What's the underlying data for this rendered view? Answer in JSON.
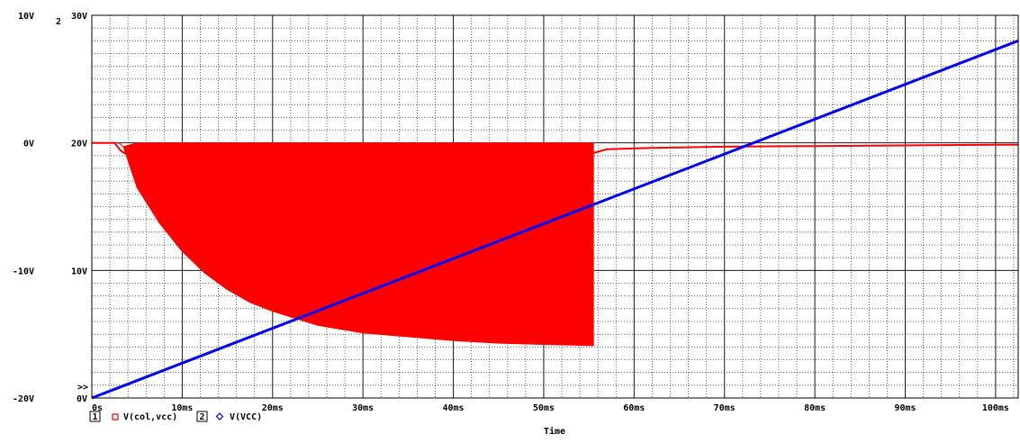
{
  "chart_data": {
    "type": "line",
    "x": {
      "label": "Time",
      "range_ms": [
        0,
        100
      ],
      "ticks_ms": [
        0,
        10,
        20,
        30,
        40,
        50,
        60,
        70,
        80,
        90,
        100
      ],
      "tick_labels": [
        "0s",
        "10ms",
        "20ms",
        "30ms",
        "40ms",
        "50ms",
        "60ms",
        "70ms",
        "80ms",
        "90ms",
        "100ms"
      ]
    },
    "y_axes": [
      {
        "id": "1",
        "range": [
          -20,
          10
        ],
        "ticks": [
          -20,
          -10,
          0,
          10
        ],
        "tick_labels": [
          "-20V",
          "-10V",
          "0V",
          "10V"
        ],
        "side": "outer-left"
      },
      {
        "id": "2",
        "range": [
          0,
          30
        ],
        "ticks": [
          0,
          10,
          20,
          30
        ],
        "tick_labels": [
          "0V",
          "10V",
          "20V",
          "30V"
        ],
        "side": "inner-left"
      }
    ],
    "y_axis_2_marker": "2",
    "selected_axis_marker": ">>",
    "grid": "dotted",
    "series": [
      {
        "name": "V(col,vcc)",
        "axis": "1",
        "color": "#ff0000",
        "legend_index": "1",
        "legend_symbol": "square",
        "kind": "oscillation-envelope",
        "envelope_time_ms": [
          0,
          3,
          3.5,
          5,
          7.5,
          10,
          12.5,
          15,
          17.5,
          20,
          25,
          30,
          35,
          40,
          45,
          50,
          55.5
        ],
        "envelope_upper_V": [
          0,
          0,
          -0.3,
          0,
          0,
          0,
          0,
          0,
          0,
          0,
          0,
          0,
          0,
          0,
          0,
          0,
          0
        ],
        "envelope_lower_V": [
          0,
          0,
          -0.3,
          -3.5,
          -6.3,
          -8.5,
          -10.2,
          -11.5,
          -12.5,
          -13.2,
          -14.3,
          -14.9,
          -15.2,
          -15.5,
          -15.7,
          -15.8,
          -15.9
        ],
        "tail_time_ms": [
          0,
          2.5,
          3.2,
          3.6,
          55.5,
          57,
          62,
          70,
          80,
          90,
          100,
          102.5
        ],
        "tail_V": [
          0,
          0,
          -0.6,
          -0.8,
          -0.8,
          -0.5,
          -0.4,
          -0.3,
          -0.25,
          -0.2,
          -0.15,
          -0.15
        ]
      },
      {
        "name": "V(VCC)",
        "axis": "2",
        "color": "#0000ff",
        "legend_index": "2",
        "legend_symbol": "diamond",
        "kind": "line",
        "time_ms": [
          0,
          102.5
        ],
        "V": [
          0,
          28
        ]
      }
    ],
    "legend_text": {
      "entry1": "V(col,vcc)",
      "entry2": "V(VCC)"
    }
  }
}
